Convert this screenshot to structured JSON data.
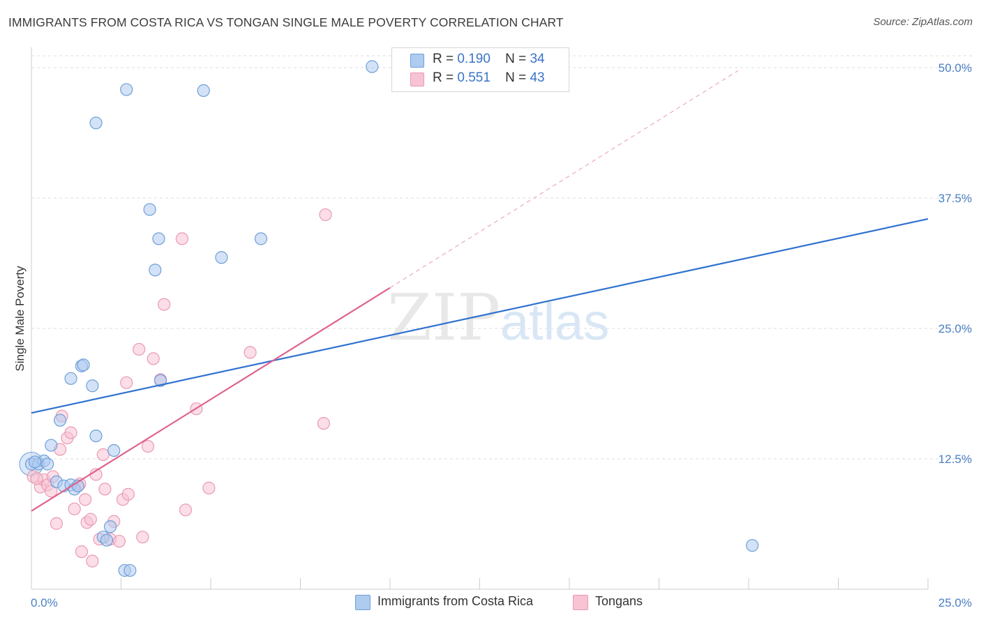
{
  "title": "IMMIGRANTS FROM COSTA RICA VS TONGAN SINGLE MALE POVERTY CORRELATION CHART",
  "source": "Source: ZipAtlas.com",
  "watermark": {
    "zip": "ZIP",
    "atlas": "atlas"
  },
  "legend": {
    "rows": [
      {
        "r_label": "R =",
        "r_value": "0.190",
        "n_label": "N =",
        "n_value": "34"
      },
      {
        "r_label": "R =",
        "r_value": "0.551",
        "n_label": "N =",
        "n_value": "43"
      }
    ]
  },
  "colors": {
    "series1_fill": "#aecbf0",
    "series1_stroke": "#6f9fd8",
    "series1_line": "#2f72cf",
    "series2_fill": "#f8c3d3",
    "series2_stroke": "#e99ab3",
    "series2_line": "#e0628e",
    "grid": "#dddddd",
    "tick_text": "#4a7fc4"
  },
  "chart_data": {
    "type": "scatter",
    "xlabel": "",
    "ylabel": "Single Male Poverty",
    "xlim": [
      0,
      25
    ],
    "ylim": [
      0,
      50
    ],
    "x_tick_labels": [
      "0.0%",
      "25.0%"
    ],
    "y_ticks": [
      12.5,
      25.0,
      37.5,
      50.0
    ],
    "y_tick_labels": [
      "12.5%",
      "25.0%",
      "37.5%",
      "50.0%"
    ],
    "grid": "horizontal dashed",
    "legend_position": "top-center",
    "series": [
      {
        "name": "Immigrants from Costa Rica",
        "r": 0.19,
        "n": 34,
        "trend": {
          "x": [
            0,
            25
          ],
          "y": [
            16.9,
            35.5
          ]
        },
        "points": [
          [
            0.0,
            12.0
          ],
          [
            0.2,
            12.0
          ],
          [
            0.35,
            12.3
          ],
          [
            0.45,
            12.0
          ],
          [
            0.55,
            13.8
          ],
          [
            0.7,
            10.3
          ],
          [
            0.8,
            16.2
          ],
          [
            0.9,
            9.9
          ],
          [
            1.1,
            10.0
          ],
          [
            1.2,
            9.6
          ],
          [
            1.1,
            20.2
          ],
          [
            1.4,
            21.4
          ],
          [
            1.45,
            21.5
          ],
          [
            1.7,
            19.5
          ],
          [
            1.8,
            14.7
          ],
          [
            2.3,
            13.3
          ],
          [
            2.2,
            6.0
          ],
          [
            2.0,
            5.0
          ],
          [
            2.1,
            4.7
          ],
          [
            2.6,
            1.8
          ],
          [
            2.75,
            1.8
          ],
          [
            3.6,
            20.0
          ],
          [
            3.3,
            36.4
          ],
          [
            3.55,
            33.6
          ],
          [
            3.45,
            30.6
          ],
          [
            5.3,
            31.8
          ],
          [
            6.4,
            33.6
          ],
          [
            1.8,
            44.7
          ],
          [
            2.65,
            47.9
          ],
          [
            4.8,
            47.8
          ],
          [
            9.5,
            50.1
          ],
          [
            20.1,
            4.2
          ],
          [
            0.1,
            12.2
          ],
          [
            1.3,
            9.9
          ]
        ]
      },
      {
        "name": "Tongans",
        "r": 0.551,
        "n": 43,
        "trend": {
          "x": [
            0,
            10
          ],
          "y": [
            7.5,
            28.9
          ]
        },
        "trend_dashed": {
          "x": [
            10,
            19.7
          ],
          "y": [
            28.9,
            49.7
          ]
        },
        "points": [
          [
            0.05,
            10.8
          ],
          [
            0.25,
            9.8
          ],
          [
            0.35,
            10.5
          ],
          [
            0.45,
            10.0
          ],
          [
            0.55,
            9.4
          ],
          [
            0.6,
            10.8
          ],
          [
            0.7,
            6.3
          ],
          [
            0.8,
            13.4
          ],
          [
            0.85,
            16.6
          ],
          [
            1.0,
            14.5
          ],
          [
            1.1,
            15.0
          ],
          [
            1.2,
            7.7
          ],
          [
            1.35,
            10.1
          ],
          [
            1.4,
            3.6
          ],
          [
            1.5,
            8.6
          ],
          [
            1.55,
            6.4
          ],
          [
            1.65,
            6.7
          ],
          [
            1.7,
            2.7
          ],
          [
            1.8,
            11.0
          ],
          [
            1.9,
            4.8
          ],
          [
            2.0,
            12.9
          ],
          [
            2.05,
            9.6
          ],
          [
            2.2,
            4.8
          ],
          [
            2.3,
            6.5
          ],
          [
            2.45,
            4.6
          ],
          [
            2.55,
            8.6
          ],
          [
            2.65,
            19.8
          ],
          [
            2.7,
            9.1
          ],
          [
            3.0,
            23.0
          ],
          [
            3.1,
            5.0
          ],
          [
            3.25,
            13.7
          ],
          [
            3.4,
            22.1
          ],
          [
            3.6,
            20.1
          ],
          [
            3.7,
            27.3
          ],
          [
            4.2,
            33.6
          ],
          [
            4.3,
            7.6
          ],
          [
            4.6,
            17.3
          ],
          [
            4.95,
            9.7
          ],
          [
            6.1,
            22.7
          ],
          [
            8.15,
            15.9
          ],
          [
            8.2,
            35.9
          ],
          [
            1.3,
            9.9
          ],
          [
            0.15,
            10.6
          ]
        ]
      }
    ]
  },
  "bottom_legend": [
    {
      "label": "Immigrants from Costa Rica"
    },
    {
      "label": "Tongans"
    }
  ]
}
